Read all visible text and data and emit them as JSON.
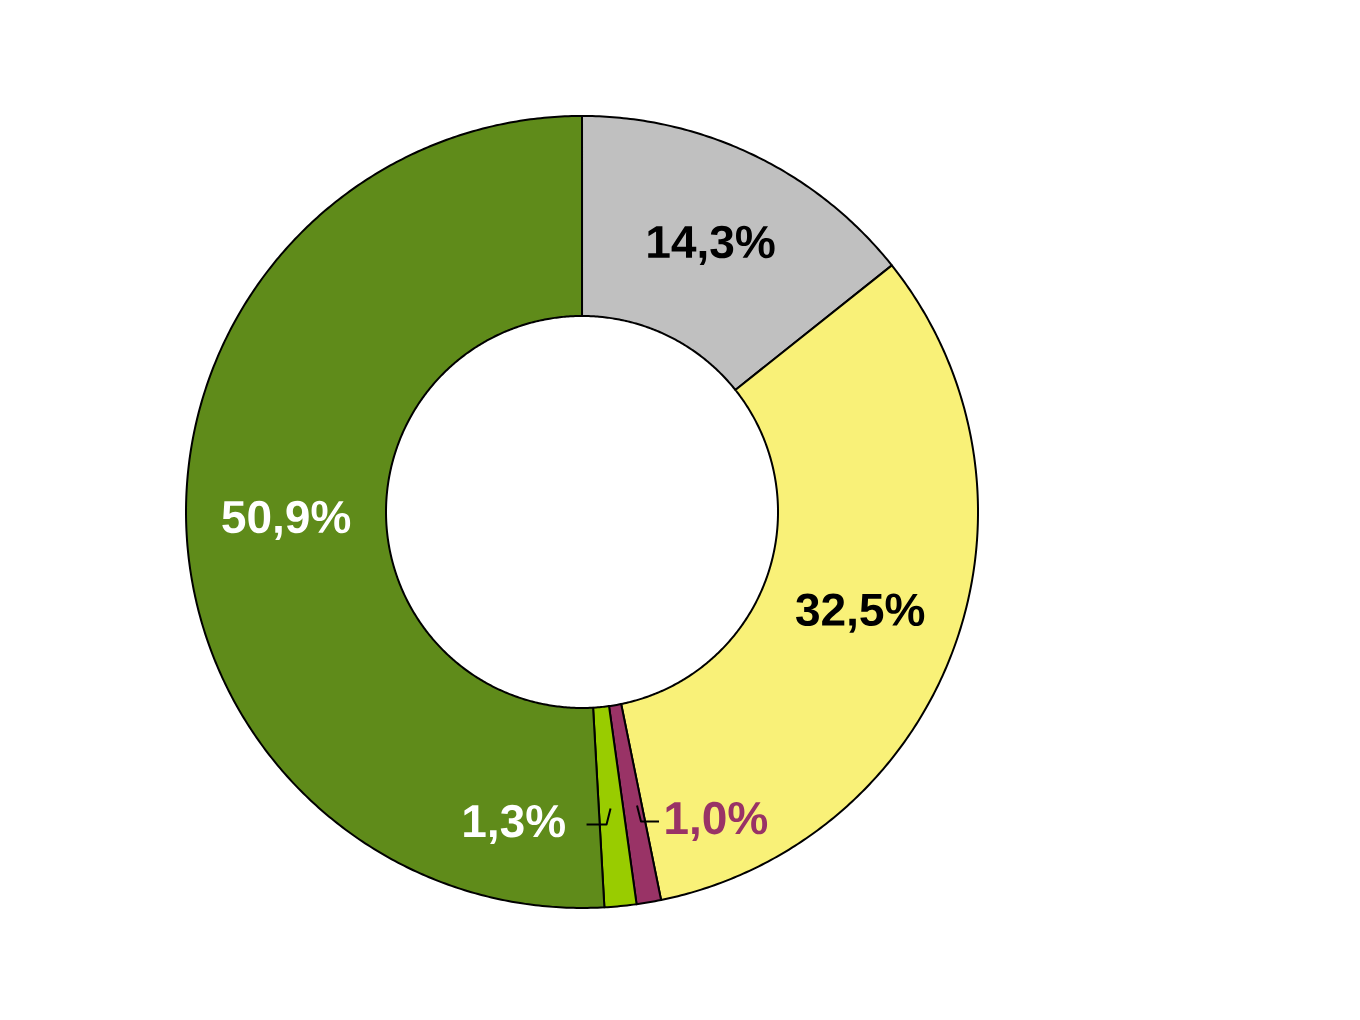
{
  "chart_data": {
    "type": "donut",
    "categories": [
      null,
      null,
      null,
      null,
      null
    ],
    "values": [
      14.3,
      32.5,
      1.0,
      1.3,
      50.9
    ],
    "colors": [
      "#c0c0c0",
      "#f9f178",
      "#993366",
      "#99cc00",
      "#5f8b1a"
    ],
    "value_labels": [
      "14,3%",
      "32,5%",
      "1,0%",
      "1,3%",
      "50,9%"
    ]
  }
}
